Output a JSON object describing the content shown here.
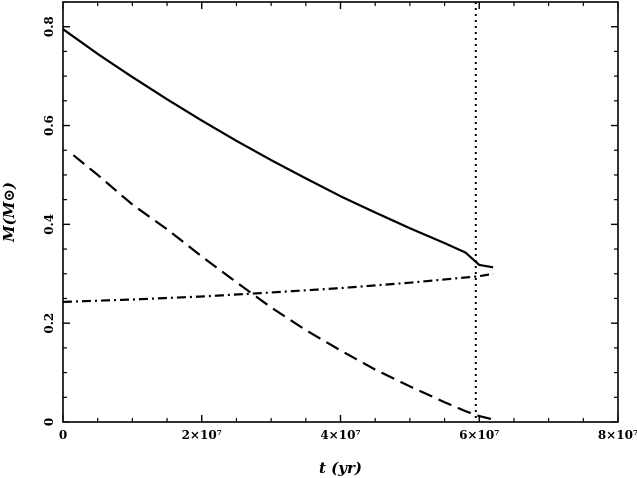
{
  "chart_data": {
    "type": "line",
    "xlabel": "t (yr)",
    "ylabel": "M(M⊙)",
    "xlim": [
      0,
      80000000
    ],
    "ylim": [
      0,
      0.85
    ],
    "x_ticks": [
      0,
      20000000,
      40000000,
      60000000,
      80000000
    ],
    "x_tick_labels": [
      "0",
      "2×10⁷",
      "4×10⁷",
      "6×10⁷",
      "8×10⁷"
    ],
    "y_ticks": [
      0,
      0.2,
      0.4,
      0.6,
      0.8
    ],
    "y_tick_labels": [
      "0",
      "0.2",
      "0.4",
      "0.6",
      "0.8"
    ],
    "grid": false,
    "series": [
      {
        "style": "solid",
        "x": [
          0,
          5000000,
          10000000,
          15000000,
          20000000,
          25000000,
          30000000,
          35000000,
          40000000,
          45000000,
          50000000,
          55000000,
          58000000,
          60000000,
          62000000
        ],
        "y": [
          0.795,
          0.745,
          0.698,
          0.653,
          0.61,
          0.569,
          0.53,
          0.493,
          0.457,
          0.424,
          0.392,
          0.362,
          0.343,
          0.318,
          0.313
        ]
      },
      {
        "style": "dashed",
        "x": [
          1500000,
          5000000,
          10000000,
          15000000,
          20000000,
          25000000,
          30000000,
          35000000,
          40000000,
          45000000,
          50000000,
          55000000,
          58000000,
          60000000,
          62000000
        ],
        "y": [
          0.54,
          0.5,
          0.44,
          0.39,
          0.335,
          0.283,
          0.232,
          0.186,
          0.145,
          0.106,
          0.072,
          0.04,
          0.022,
          0.012,
          0.005
        ]
      },
      {
        "style": "dash-dot",
        "x": [
          0,
          10000000,
          20000000,
          30000000,
          40000000,
          50000000,
          60000000,
          62000000
        ],
        "y": [
          0.243,
          0.248,
          0.254,
          0.262,
          0.271,
          0.282,
          0.295,
          0.3
        ]
      }
    ],
    "vertical_lines": [
      {
        "style": "dotted",
        "x": 59500000
      }
    ]
  }
}
